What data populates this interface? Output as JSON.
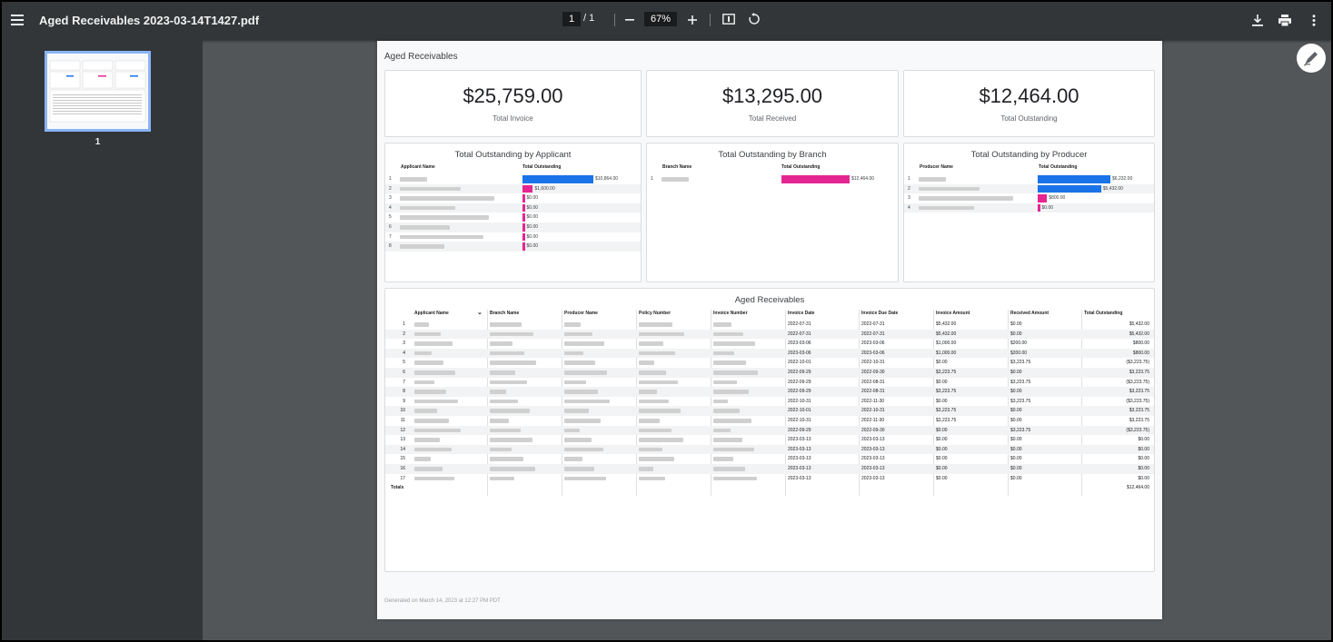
{
  "viewer": {
    "title": "Aged Receivables 2023-03-14T1427.pdf",
    "page_current": "1",
    "page_total": "/ 1",
    "zoom": "67%",
    "thumbnail_label": "1",
    "icons": [
      "menu-icon",
      "zoom-out-icon",
      "zoom-in-icon",
      "fit-page-icon",
      "rotate-icon",
      "download-icon",
      "print-icon",
      "more-vert-icon",
      "annotate-icon"
    ]
  },
  "report": {
    "title": "Aged Receivables",
    "footer": "Generated on March 14, 2023 at 12:27 PM PDT",
    "kpis": [
      {
        "value": "$25,759.00",
        "label": "Total Invoice"
      },
      {
        "value": "$13,295.00",
        "label": "Total Received"
      },
      {
        "value": "$12,464.00",
        "label": "Total Outstanding"
      }
    ],
    "by_applicant": {
      "title": "Total Outstanding by Applicant",
      "col1": "Applicant Name",
      "col2": "Total Outstanding",
      "rows": [
        {
          "n": "1",
          "label": "$10,864.00",
          "value": 10864,
          "color": "#1a73e8"
        },
        {
          "n": "2",
          "label": "$1,600.00",
          "value": 1600,
          "color": "#e52592"
        },
        {
          "n": "3",
          "label": "$0.00",
          "value": 0,
          "color": "#e52592"
        },
        {
          "n": "4",
          "label": "$0.00",
          "value": 0,
          "color": "#e52592"
        },
        {
          "n": "5",
          "label": "$0.00",
          "value": 0,
          "color": "#e52592"
        },
        {
          "n": "6",
          "label": "$0.00",
          "value": 0,
          "color": "#e52592"
        },
        {
          "n": "7",
          "label": "$0.00",
          "value": 0,
          "color": "#e52592"
        },
        {
          "n": "8",
          "label": "$0.00",
          "value": 0,
          "color": "#e52592"
        }
      ]
    },
    "by_branch": {
      "title": "Total Outstanding by Branch",
      "col1": "Branch Name",
      "col2": "Total Outstanding",
      "rows": [
        {
          "n": "1",
          "label": "$12,464.00",
          "value": 12464,
          "color": "#e52592"
        }
      ]
    },
    "by_producer": {
      "title": "Total Outstanding by Producer",
      "col1": "Producer Name",
      "col2": "Total Outstanding",
      "rows": [
        {
          "n": "1",
          "label": "$6,232.00",
          "value": 6232,
          "color": "#1a73e8"
        },
        {
          "n": "2",
          "label": "$5,432.00",
          "value": 5432,
          "color": "#1a73e8"
        },
        {
          "n": "3",
          "label": "$800.00",
          "value": 800,
          "color": "#e52592"
        },
        {
          "n": "4",
          "label": "$0.00",
          "value": 0,
          "color": "#e52592"
        }
      ]
    },
    "table": {
      "title": "Aged Receivables",
      "columns": [
        "Applicant Name",
        "Branch Name",
        "Producer Name",
        "Policy Number",
        "Invoice Number",
        "Invoice Date",
        "Invoice Due Date",
        "Invoice Amount",
        "Received Amount",
        "Total Outstanding"
      ],
      "rows": [
        {
          "n": "1",
          "invoice_date": "2022-07-31",
          "due_date": "2022-07-31",
          "invoice_amount": "$5,432.00",
          "received": "$0.00",
          "outstanding": "$5,432.00"
        },
        {
          "n": "2",
          "invoice_date": "2022-07-31",
          "due_date": "2022-07-31",
          "invoice_amount": "$5,432.00",
          "received": "$0.00",
          "outstanding": "$5,432.00"
        },
        {
          "n": "3",
          "invoice_date": "2023-03-06",
          "due_date": "2023-03-06",
          "invoice_amount": "$1,000.00",
          "received": "$200.00",
          "outstanding": "$800.00"
        },
        {
          "n": "4",
          "invoice_date": "2023-03-06",
          "due_date": "2023-03-06",
          "invoice_amount": "$1,000.00",
          "received": "$200.00",
          "outstanding": "$800.00"
        },
        {
          "n": "5",
          "invoice_date": "2022-10-01",
          "due_date": "2022-10-31",
          "invoice_amount": "$0.00",
          "received": "$3,223.75",
          "outstanding": "($3,223.75)"
        },
        {
          "n": "6",
          "invoice_date": "2022-09-29",
          "due_date": "2022-09-30",
          "invoice_amount": "$3,223.75",
          "received": "$0.00",
          "outstanding": "$3,223.75"
        },
        {
          "n": "7",
          "invoice_date": "2022-09-29",
          "due_date": "2022-08-31",
          "invoice_amount": "$0.00",
          "received": "$3,223.75",
          "outstanding": "($3,223.75)"
        },
        {
          "n": "8",
          "invoice_date": "2022-09-29",
          "due_date": "2022-08-31",
          "invoice_amount": "$3,223.75",
          "received": "$0.00",
          "outstanding": "$3,223.75"
        },
        {
          "n": "9",
          "invoice_date": "2022-10-31",
          "due_date": "2022-11-30",
          "invoice_amount": "$0.00",
          "received": "$3,223.75",
          "outstanding": "($3,223.75)"
        },
        {
          "n": "10",
          "invoice_date": "2022-10-01",
          "due_date": "2022-10-31",
          "invoice_amount": "$3,223.75",
          "received": "$0.00",
          "outstanding": "$3,223.75"
        },
        {
          "n": "11",
          "invoice_date": "2022-10-31",
          "due_date": "2022-11-30",
          "invoice_amount": "$3,223.75",
          "received": "$0.00",
          "outstanding": "$3,223.75"
        },
        {
          "n": "12",
          "invoice_date": "2022-09-29",
          "due_date": "2022-09-30",
          "invoice_amount": "$0.00",
          "received": "$3,223.75",
          "outstanding": "($3,223.75)"
        },
        {
          "n": "13",
          "invoice_date": "2023-03-13",
          "due_date": "2023-03-13",
          "invoice_amount": "$0.00",
          "received": "$0.00",
          "outstanding": "$0.00"
        },
        {
          "n": "14",
          "invoice_date": "2023-03-13",
          "due_date": "2023-03-13",
          "invoice_amount": "$0.00",
          "received": "$0.00",
          "outstanding": "$0.00"
        },
        {
          "n": "15",
          "invoice_date": "2023-03-13",
          "due_date": "2023-03-13",
          "invoice_amount": "$0.00",
          "received": "$0.00",
          "outstanding": "$0.00"
        },
        {
          "n": "16",
          "invoice_date": "2023-03-13",
          "due_date": "2023-03-13",
          "invoice_amount": "$0.00",
          "received": "$0.00",
          "outstanding": "$0.00"
        },
        {
          "n": "17",
          "invoice_date": "2023-03-13",
          "due_date": "2023-03-13",
          "invoice_amount": "$0.00",
          "received": "$0.00",
          "outstanding": "$0.00"
        }
      ],
      "totals_label": "Totals",
      "totals_value": "$12,464.00"
    }
  }
}
